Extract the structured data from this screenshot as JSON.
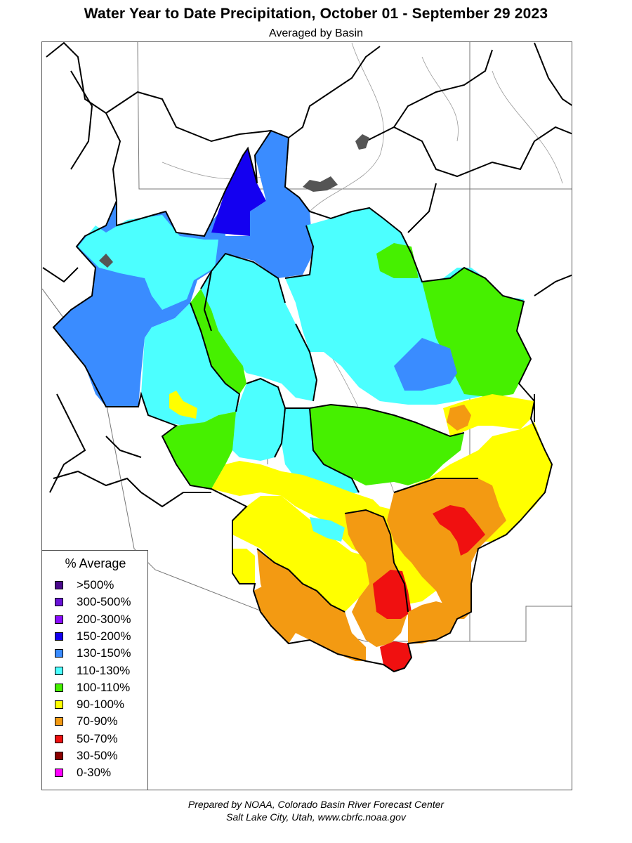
{
  "title": "Water Year to Date Precipitation, October 01  - September 29 2023",
  "subtitle": "Averaged by Basin",
  "legend": {
    "title": "% Average",
    "items": [
      {
        "label": ">500%",
        "color": "#4b0a8c"
      },
      {
        "label": "300-500%",
        "color": "#6a12d8"
      },
      {
        "label": "200-300%",
        "color": "#8a0cff"
      },
      {
        "label": "150-200%",
        "color": "#1400f0"
      },
      {
        "label": "130-150%",
        "color": "#3a8cff"
      },
      {
        "label": "110-130%",
        "color": "#4cffff"
      },
      {
        "label": "100-110%",
        "color": "#46f000"
      },
      {
        "label": "90-100%",
        "color": "#ffff00"
      },
      {
        "label": "70-90%",
        "color": "#f39a12"
      },
      {
        "label": "50-70%",
        "color": "#f01010"
      },
      {
        "label": "30-50%",
        "color": "#8c0000"
      },
      {
        "label": "0-30%",
        "color": "#ff00ff"
      }
    ]
  },
  "credit": {
    "line1": "Prepared by NOAA, Colorado Basin River Forecast Center",
    "line2": "Salt Lake City, Utah, www.cbrfc.noaa.gov"
  }
}
